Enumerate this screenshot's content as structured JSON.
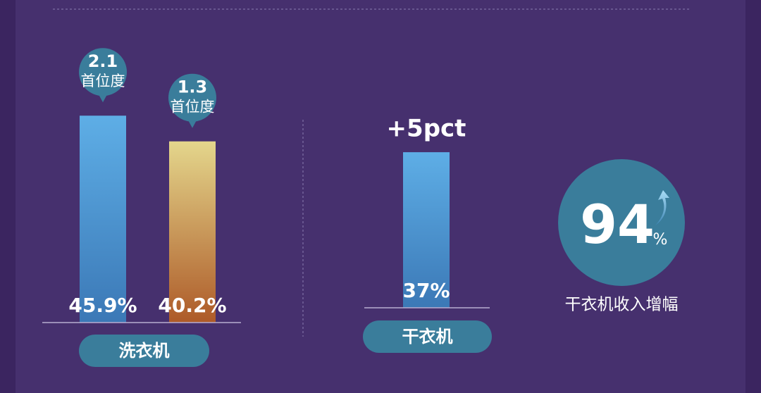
{
  "chart_data": [
    {
      "type": "bar",
      "category": "洗衣机",
      "values": [
        45.9,
        40.2
      ],
      "value_labels": [
        "45.9%",
        "40.2%"
      ],
      "colors": [
        [
          "#5eaee6",
          "#3b78b6"
        ],
        [
          "#e4d68c",
          "#ad5a28"
        ]
      ],
      "badges": [
        {
          "value": 2.1,
          "unit": "首位度"
        },
        {
          "value": 1.3,
          "unit": "首位度"
        }
      ]
    },
    {
      "type": "bar",
      "category": "干衣机",
      "values": [
        37
      ],
      "value_labels": [
        "37%"
      ],
      "colors": [
        [
          "#5eaee6",
          "#3b78b6"
        ]
      ],
      "annotation": "+5pct"
    }
  ],
  "highlight": {
    "value": 94,
    "unit": "%",
    "caption": "干衣机收入增幅"
  }
}
